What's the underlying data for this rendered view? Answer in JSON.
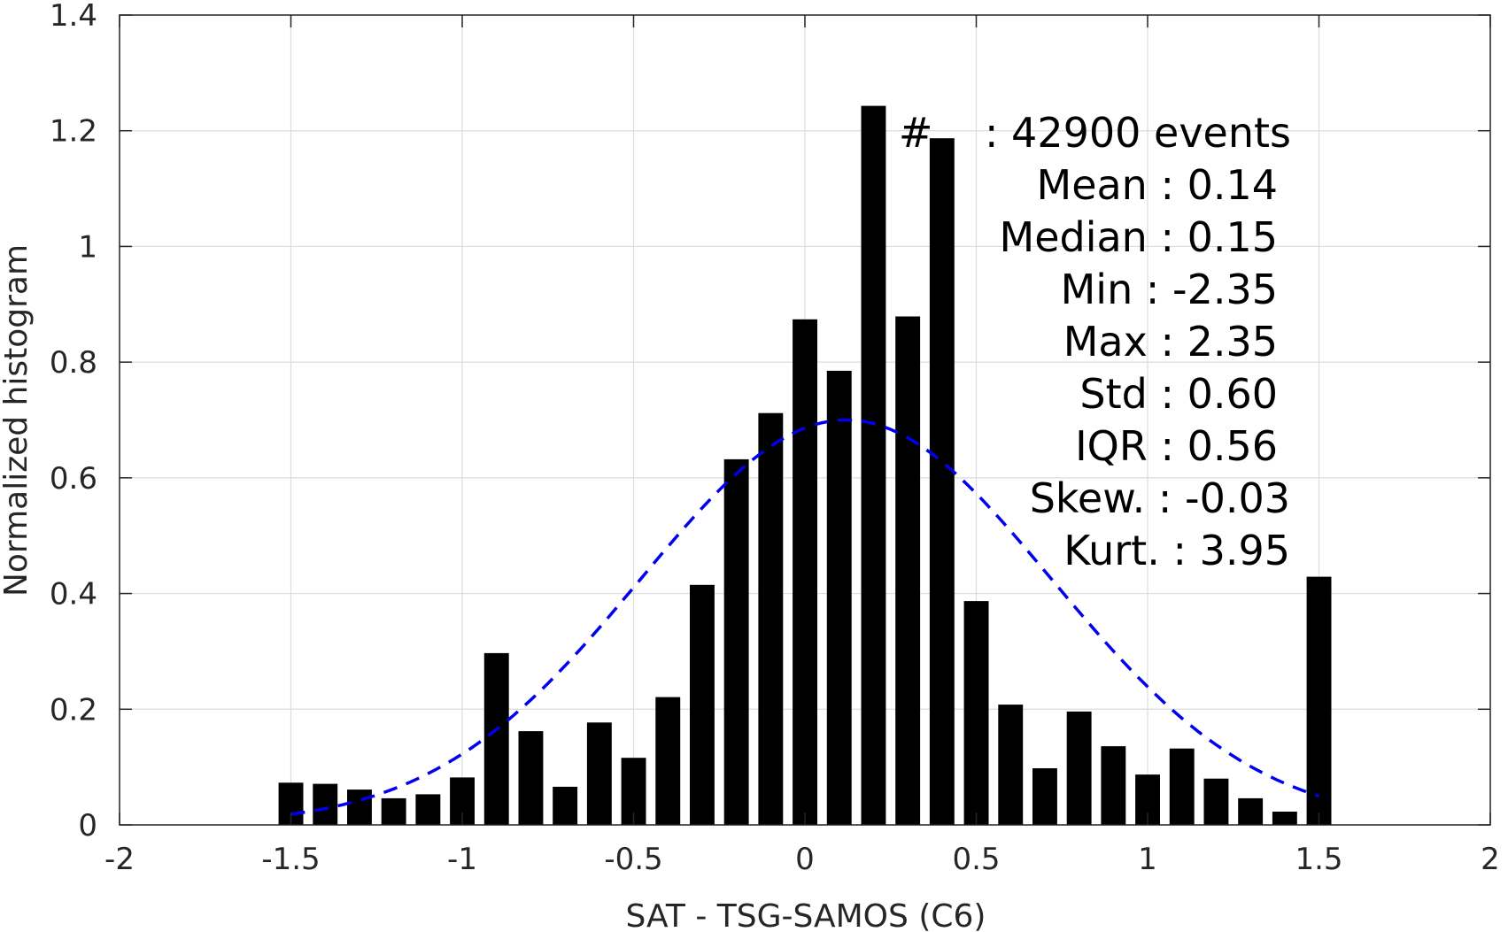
{
  "chart_data": {
    "type": "bar",
    "xlabel": "SAT - TSG-SAMOS (C6)",
    "ylabel": "Normalized histogram",
    "xlim": [
      -2,
      2
    ],
    "ylim": [
      0,
      1.4
    ],
    "xticks": [
      "-2",
      "-1.5",
      "-1",
      "-0.5",
      "0",
      "0.5",
      "1",
      "1.5",
      "2"
    ],
    "yticks": [
      "0",
      "0.2",
      "0.4",
      "0.6",
      "0.8",
      "1",
      "1.2",
      "1.4"
    ],
    "grid": true,
    "bar_color": "#000000",
    "curve_color": "#0000ee",
    "bins": {
      "x": [
        -1.5,
        -1.4,
        -1.3,
        -1.2,
        -1.1,
        -1.0,
        -0.9,
        -0.8,
        -0.7,
        -0.6,
        -0.5,
        -0.4,
        -0.3,
        -0.2,
        -0.1,
        0.0,
        0.1,
        0.2,
        0.3,
        0.4,
        0.5,
        0.6,
        0.7,
        0.8,
        0.9,
        1.0,
        1.1,
        1.2,
        1.3,
        1.4,
        1.5
      ],
      "values": [
        0.073,
        0.071,
        0.061,
        0.046,
        0.053,
        0.082,
        0.297,
        0.162,
        0.066,
        0.177,
        0.116,
        0.221,
        0.415,
        0.632,
        0.712,
        0.874,
        0.785,
        1.243,
        0.879,
        1.187,
        0.387,
        0.208,
        0.098,
        0.196,
        0.136,
        0.087,
        0.132,
        0.08,
        0.046,
        0.023,
        0.429
      ]
    },
    "normal_fit": {
      "series_style": "dashed",
      "x_range": [
        -1.5,
        1.5
      ],
      "mean": 0.12,
      "peak": 0.7
    },
    "annotations": [
      "#    : 42900 events",
      "Mean : 0.14",
      "Median : 0.15",
      "Min : -2.35",
      "Max : 2.35",
      "Std : 0.60",
      "IQR : 0.56",
      "Skew. : -0.03",
      "Kurt. : 3.95"
    ]
  }
}
